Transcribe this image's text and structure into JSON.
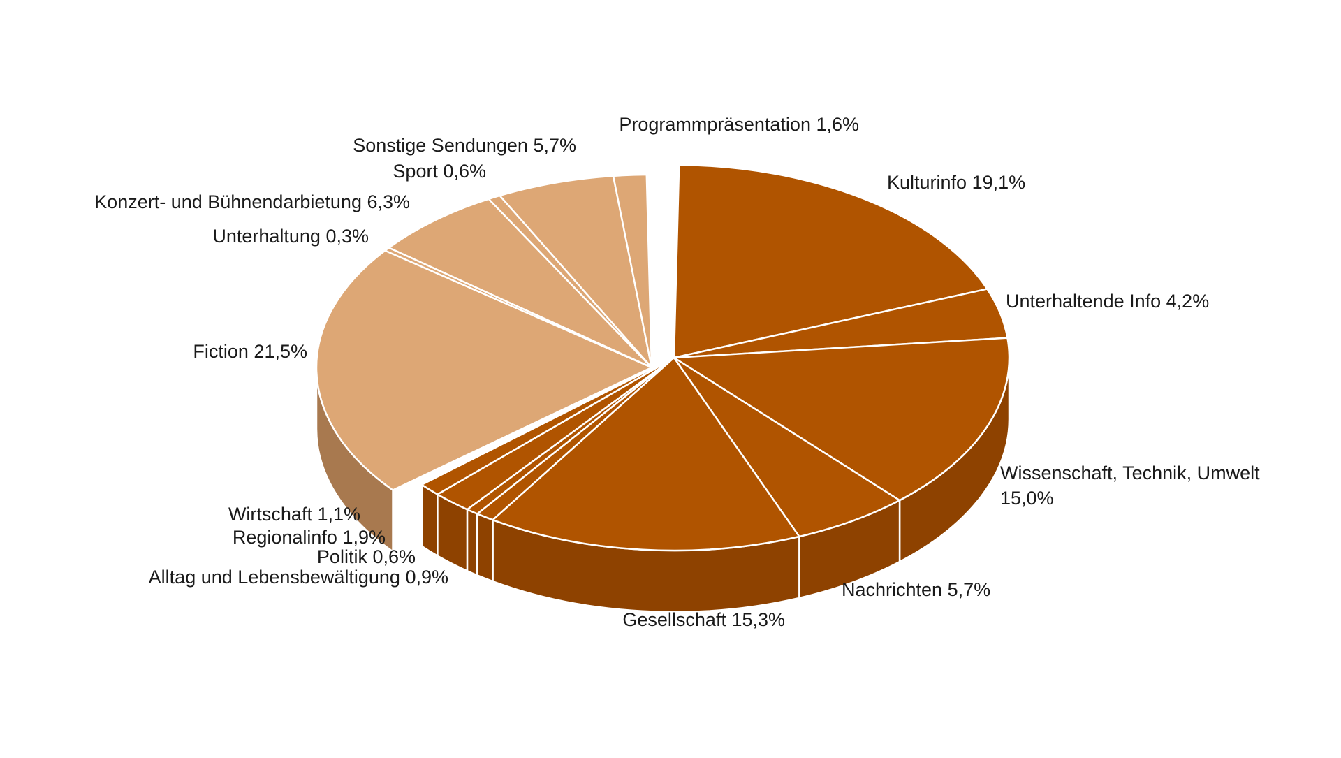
{
  "chart_data": {
    "type": "pie",
    "variant": "3d-exploded",
    "colors": {
      "dark_group": "#b05400",
      "dark_group_side": "#8e4200",
      "light_group": "#dda775",
      "light_group_side": "#a8794f",
      "separator": "#ffffff"
    },
    "slices": [
      {
        "label": "Kulturinfo",
        "value_label": "19,1%",
        "value": 19.1,
        "group": "dark"
      },
      {
        "label": "Unterhaltende Info",
        "value_label": "4,2%",
        "value": 4.2,
        "group": "dark"
      },
      {
        "label": "Wissenschaft, Technik, Umwelt",
        "value_label": "15,0%",
        "value": 15.0,
        "group": "dark"
      },
      {
        "label": "Nachrichten",
        "value_label": "5,7%",
        "value": 5.7,
        "group": "dark"
      },
      {
        "label": "Gesellschaft",
        "value_label": "15,3%",
        "value": 15.3,
        "group": "dark"
      },
      {
        "label": "Alltag und Lebensbewältigung",
        "value_label": "0,9%",
        "value": 0.9,
        "group": "dark"
      },
      {
        "label": "Politik",
        "value_label": "0,6%",
        "value": 0.6,
        "group": "dark"
      },
      {
        "label": "Regionalinfo",
        "value_label": "1,9%",
        "value": 1.9,
        "group": "dark"
      },
      {
        "label": "Wirtschaft",
        "value_label": "1,1%",
        "value": 1.1,
        "group": "dark"
      },
      {
        "label": "Fiction",
        "value_label": "21,5%",
        "value": 21.5,
        "group": "light"
      },
      {
        "label": "Unterhaltung",
        "value_label": "0,3%",
        "value": 0.3,
        "group": "light"
      },
      {
        "label": "Konzert- und Bühnendarbietung",
        "value_label": "6,3%",
        "value": 6.3,
        "group": "light"
      },
      {
        "label": "Sport",
        "value_label": "0,6%",
        "value": 0.6,
        "group": "light"
      },
      {
        "label": "Sonstige Sendungen",
        "value_label": "5,7%",
        "value": 5.7,
        "group": "light"
      },
      {
        "label": "Programmpräsentation",
        "value_label": "1,6%",
        "value": 1.6,
        "group": "light"
      }
    ]
  }
}
